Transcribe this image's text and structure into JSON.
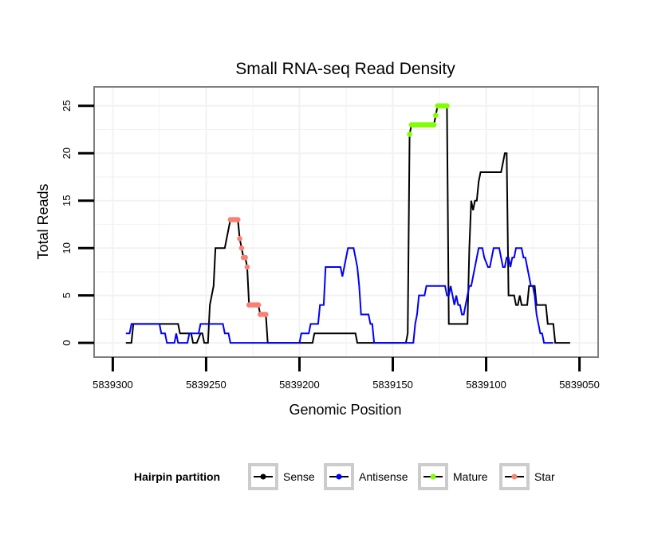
{
  "chart_data": {
    "type": "line",
    "title": "Small RNA-seq Read Density",
    "xlabel": "Genomic Position",
    "ylabel": "Total Reads",
    "x_reversed": true,
    "xlim": [
      5839310,
      5839040
    ],
    "ylim": [
      -1.5,
      27
    ],
    "x_ticks": [
      5839300,
      5839250,
      5839200,
      5839150,
      5839100,
      5839050
    ],
    "x_tick_labels": [
      "5839300",
      "5839250",
      "5839200",
      "5839150",
      "5839100",
      "5839050"
    ],
    "y_ticks": [
      0,
      5,
      10,
      15,
      20,
      25
    ],
    "y_tick_labels": [
      "0",
      "5",
      "10",
      "15",
      "20",
      "25"
    ],
    "grid": true,
    "legend": {
      "title": "Hairpin partition",
      "placement": "bottom",
      "entries": [
        "Sense",
        "Antisense",
        "Mature",
        "Star"
      ]
    },
    "colors": {
      "Sense": "#000000",
      "Antisense": "#0000ff",
      "Mature": "#7fff00",
      "Star": "#fa8072",
      "panel_border": "#7f7f7f",
      "grid": "#f2f2f2"
    },
    "series": [
      {
        "name": "Sense",
        "style": "line",
        "points": [
          [
            5839293,
            0
          ],
          [
            5839290,
            0
          ],
          [
            5839289,
            2
          ],
          [
            5839280,
            2
          ],
          [
            5839270,
            2
          ],
          [
            5839265,
            2
          ],
          [
            5839264,
            1
          ],
          [
            5839258,
            1
          ],
          [
            5839257,
            0
          ],
          [
            5839255,
            0
          ],
          [
            5839253,
            1
          ],
          [
            5839252,
            1
          ],
          [
            5839251,
            0
          ],
          [
            5839249,
            0
          ],
          [
            5839248,
            4
          ],
          [
            5839246,
            6
          ],
          [
            5839245,
            10
          ],
          [
            5839241,
            10
          ],
          [
            5839240,
            10
          ],
          [
            5839238,
            12
          ],
          [
            5839237,
            13
          ],
          [
            5839235,
            13
          ],
          [
            5839233,
            13
          ],
          [
            5839232,
            11
          ],
          [
            5839231,
            10
          ],
          [
            5839230,
            9
          ],
          [
            5839229,
            9
          ],
          [
            5839228,
            8
          ],
          [
            5839227,
            4
          ],
          [
            5839226,
            4
          ],
          [
            5839224,
            4
          ],
          [
            5839222,
            4
          ],
          [
            5839221,
            3
          ],
          [
            5839220,
            3
          ],
          [
            5839219,
            3
          ],
          [
            5839218,
            3
          ],
          [
            5839217,
            0
          ],
          [
            5839210,
            0
          ],
          [
            5839200,
            0
          ],
          [
            5839193,
            0
          ],
          [
            5839192,
            1
          ],
          [
            5839180,
            1
          ],
          [
            5839170,
            1
          ],
          [
            5839169,
            0
          ],
          [
            5839160,
            0
          ],
          [
            5839150,
            0
          ],
          [
            5839143,
            0
          ],
          [
            5839142,
            1
          ],
          [
            5839141,
            22
          ],
          [
            5839140,
            23
          ],
          [
            5839135,
            23
          ],
          [
            5839130,
            23
          ],
          [
            5839128,
            23
          ],
          [
            5839127,
            24
          ],
          [
            5839126,
            25
          ],
          [
            5839122,
            25
          ],
          [
            5839121,
            25
          ],
          [
            5839120,
            2
          ],
          [
            5839115,
            2
          ],
          [
            5839110,
            2
          ],
          [
            5839109,
            10
          ],
          [
            5839108,
            15
          ],
          [
            5839107,
            14
          ],
          [
            5839106,
            15
          ],
          [
            5839105,
            15
          ],
          [
            5839104,
            17
          ],
          [
            5839103,
            18
          ],
          [
            5839095,
            18
          ],
          [
            5839092,
            18
          ],
          [
            5839091,
            19
          ],
          [
            5839090,
            20
          ],
          [
            5839089,
            20
          ],
          [
            5839088,
            5
          ],
          [
            5839086,
            5
          ],
          [
            5839085,
            5
          ],
          [
            5839084,
            4
          ],
          [
            5839083,
            4
          ],
          [
            5839082,
            5
          ],
          [
            5839081,
            4
          ],
          [
            5839078,
            4
          ],
          [
            5839077,
            6
          ],
          [
            5839074,
            6
          ],
          [
            5839073,
            4
          ],
          [
            5839069,
            4
          ],
          [
            5839068,
            4
          ],
          [
            5839067,
            2
          ],
          [
            5839064,
            2
          ],
          [
            5839063,
            0
          ],
          [
            5839055,
            0
          ]
        ]
      },
      {
        "name": "Antisense",
        "style": "line",
        "points": [
          [
            5839293,
            1
          ],
          [
            5839291,
            1
          ],
          [
            5839290,
            2
          ],
          [
            5839280,
            2
          ],
          [
            5839275,
            2
          ],
          [
            5839274,
            1
          ],
          [
            5839272,
            1
          ],
          [
            5839271,
            0
          ],
          [
            5839267,
            0
          ],
          [
            5839266,
            1
          ],
          [
            5839265,
            0
          ],
          [
            5839260,
            0
          ],
          [
            5839259,
            1
          ],
          [
            5839256,
            1
          ],
          [
            5839255,
            1
          ],
          [
            5839254,
            1
          ],
          [
            5839253,
            2
          ],
          [
            5839245,
            2
          ],
          [
            5839241,
            2
          ],
          [
            5839240,
            1
          ],
          [
            5839238,
            1
          ],
          [
            5839237,
            0
          ],
          [
            5839230,
            0
          ],
          [
            5839218,
            0
          ],
          [
            5839217,
            0
          ],
          [
            5839216,
            0
          ],
          [
            5839215,
            0
          ],
          [
            5839214,
            0
          ],
          [
            5839212,
            0
          ],
          [
            5839200,
            0
          ],
          [
            5839199,
            1
          ],
          [
            5839195,
            1
          ],
          [
            5839194,
            2
          ],
          [
            5839190,
            2
          ],
          [
            5839189,
            4
          ],
          [
            5839187,
            4
          ],
          [
            5839186,
            8
          ],
          [
            5839182,
            8
          ],
          [
            5839178,
            8
          ],
          [
            5839177,
            7
          ],
          [
            5839176,
            8
          ],
          [
            5839175,
            9
          ],
          [
            5839174,
            10
          ],
          [
            5839171,
            10
          ],
          [
            5839170,
            9
          ],
          [
            5839169,
            8
          ],
          [
            5839168,
            6
          ],
          [
            5839167,
            3
          ],
          [
            5839165,
            3
          ],
          [
            5839163,
            3
          ],
          [
            5839162,
            2
          ],
          [
            5839161,
            2
          ],
          [
            5839160,
            0
          ],
          [
            5839150,
            0
          ],
          [
            5839148,
            0
          ],
          [
            5839145,
            0
          ],
          [
            5839144,
            0
          ],
          [
            5839143,
            0
          ],
          [
            5839142,
            0
          ],
          [
            5839141,
            0
          ],
          [
            5839140,
            0
          ],
          [
            5839139,
            0
          ],
          [
            5839138,
            2
          ],
          [
            5839137,
            3
          ],
          [
            5839136,
            5
          ],
          [
            5839133,
            5
          ],
          [
            5839132,
            6
          ],
          [
            5839128,
            6
          ],
          [
            5839125,
            6
          ],
          [
            5839124,
            6
          ],
          [
            5839122,
            6
          ],
          [
            5839121,
            5
          ],
          [
            5839120,
            5
          ],
          [
            5839119,
            6
          ],
          [
            5839118,
            5
          ],
          [
            5839117,
            4
          ],
          [
            5839116,
            5
          ],
          [
            5839115,
            4
          ],
          [
            5839114,
            4
          ],
          [
            5839113,
            3
          ],
          [
            5839112,
            3
          ],
          [
            5839111,
            4
          ],
          [
            5839110,
            5
          ],
          [
            5839109,
            6
          ],
          [
            5839108,
            6
          ],
          [
            5839107,
            7
          ],
          [
            5839106,
            8
          ],
          [
            5839105,
            9
          ],
          [
            5839104,
            10
          ],
          [
            5839102,
            10
          ],
          [
            5839101,
            9
          ],
          [
            5839099,
            8
          ],
          [
            5839098,
            8
          ],
          [
            5839097,
            9
          ],
          [
            5839096,
            10
          ],
          [
            5839093,
            10
          ],
          [
            5839092,
            9
          ],
          [
            5839091,
            8
          ],
          [
            5839090,
            8
          ],
          [
            5839089,
            9
          ],
          [
            5839088,
            9
          ],
          [
            5839087,
            8
          ],
          [
            5839086,
            9
          ],
          [
            5839085,
            9
          ],
          [
            5839084,
            10
          ],
          [
            5839081,
            10
          ],
          [
            5839080,
            9
          ],
          [
            5839079,
            9
          ],
          [
            5839078,
            8
          ],
          [
            5839077,
            7
          ],
          [
            5839076,
            6
          ],
          [
            5839075,
            6
          ],
          [
            5839074,
            5
          ],
          [
            5839073,
            3
          ],
          [
            5839072,
            2
          ],
          [
            5839071,
            1
          ],
          [
            5839070,
            1
          ],
          [
            5839069,
            0
          ],
          [
            5839067,
            0
          ],
          [
            5839064,
            0
          ]
        ]
      },
      {
        "name": "Mature",
        "style": "points",
        "points": [
          [
            5839141,
            22
          ],
          [
            5839140,
            23
          ],
          [
            5839139,
            23
          ],
          [
            5839138,
            23
          ],
          [
            5839137,
            23
          ],
          [
            5839136,
            23
          ],
          [
            5839135,
            23
          ],
          [
            5839134,
            23
          ],
          [
            5839133,
            23
          ],
          [
            5839132,
            23
          ],
          [
            5839131,
            23
          ],
          [
            5839130,
            23
          ],
          [
            5839129,
            23
          ],
          [
            5839128,
            23
          ],
          [
            5839127,
            24
          ],
          [
            5839126,
            25
          ],
          [
            5839125,
            25
          ],
          [
            5839124,
            25
          ],
          [
            5839123,
            25
          ],
          [
            5839122,
            25
          ],
          [
            5839121,
            25
          ]
        ]
      },
      {
        "name": "Star",
        "style": "points",
        "points": [
          [
            5839237,
            13
          ],
          [
            5839236,
            13
          ],
          [
            5839235,
            13
          ],
          [
            5839234,
            13
          ],
          [
            5839233,
            13
          ],
          [
            5839232,
            11
          ],
          [
            5839231,
            10
          ],
          [
            5839230,
            9
          ],
          [
            5839229,
            9
          ],
          [
            5839228,
            8
          ],
          [
            5839227,
            4
          ],
          [
            5839226,
            4
          ],
          [
            5839225,
            4
          ],
          [
            5839224,
            4
          ],
          [
            5839223,
            4
          ],
          [
            5839222,
            4
          ],
          [
            5839221,
            3
          ],
          [
            5839220,
            3
          ],
          [
            5839219,
            3
          ],
          [
            5839218,
            3
          ]
        ]
      }
    ]
  }
}
